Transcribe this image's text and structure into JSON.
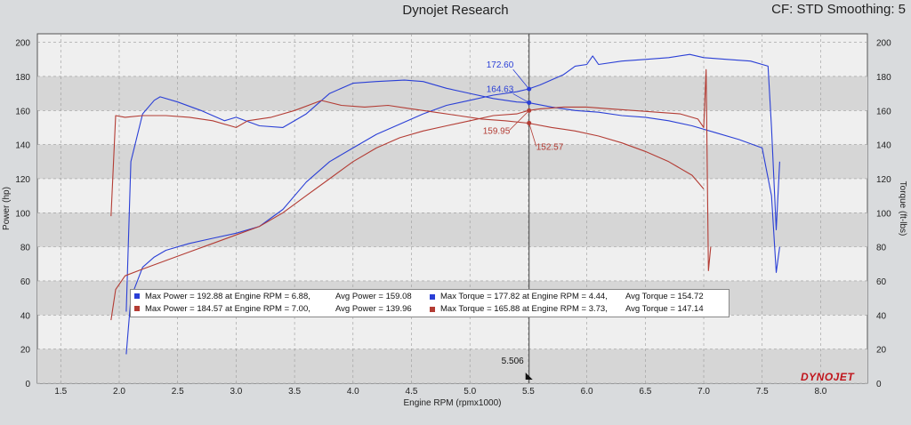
{
  "header": {
    "title": "Dynojet Research",
    "settings": "CF: STD Smoothing: 5"
  },
  "brand": "DYNOJET",
  "colors": {
    "run1": "#2a3fd6",
    "run2": "#b33c34",
    "plot_bg_light": "#efefef",
    "plot_bg_dark": "#d6d6d6",
    "grid": "#9a9a9a"
  },
  "chart_data": {
    "type": "line",
    "title": "Dynojet Research",
    "xlabel": "Engine RPM (rpmx1000)",
    "ylabel": "Power (hp)",
    "y2label": "Torque (ft-lbs)",
    "xlim": [
      1.3,
      8.4
    ],
    "ylim": [
      0,
      205
    ],
    "y2lim": [
      0,
      205
    ],
    "xticks": [
      "1.5",
      "2.0",
      "2.5",
      "3.0",
      "3.5",
      "4.0",
      "4.5",
      "5.0",
      "5.5",
      "6.0",
      "6.5",
      "7.0",
      "7.5",
      "8.0"
    ],
    "yticks": [
      "0",
      "20",
      "40",
      "60",
      "80",
      "100",
      "120",
      "140",
      "160",
      "180",
      "200"
    ],
    "grid": true,
    "cursor": {
      "x": 5.506,
      "label": "5.506"
    },
    "cursor_values": [
      {
        "label": "172.60",
        "x": 5.506,
        "y": 172.6,
        "series": "run1"
      },
      {
        "label": "164.63",
        "x": 5.506,
        "y": 164.6,
        "series": "run1"
      },
      {
        "label": "159.95",
        "x": 5.506,
        "y": 159.95,
        "series": "run2"
      },
      {
        "label": "152.57",
        "x": 5.506,
        "y": 152.6,
        "series": "run2"
      }
    ],
    "legend": [
      {
        "series": "run1",
        "max_power": "Max Power = 192.88 at Engine RPM = 6.88,",
        "avg_power": "Avg Power = 159.08",
        "max_torque": "Max Torque = 177.82 at Engine RPM = 4.44,",
        "avg_torque": "Avg Torque = 154.72"
      },
      {
        "series": "run2",
        "max_power": "Max Power = 184.57 at Engine RPM = 7.00,",
        "avg_power": "Avg Power = 139.96",
        "max_torque": "Max Torque = 165.88 at Engine RPM = 3.73,",
        "avg_torque": "Avg Torque = 147.14"
      }
    ],
    "series": [
      {
        "id": "run1_power",
        "color": "#2a3fd6",
        "x": [
          2.06,
          2.1,
          2.2,
          2.3,
          2.4,
          2.6,
          2.8,
          3.0,
          3.2,
          3.4,
          3.6,
          3.8,
          4.0,
          4.2,
          4.4,
          4.6,
          4.8,
          5.0,
          5.2,
          5.4,
          5.5,
          5.6,
          5.8,
          5.9,
          6.0,
          6.05,
          6.1,
          6.3,
          6.5,
          6.7,
          6.88,
          7.0,
          7.2,
          7.4,
          7.55,
          7.58,
          7.62,
          7.65
        ],
        "y": [
          17,
          50,
          68,
          74,
          78,
          82,
          85,
          88,
          92,
          102,
          118,
          130,
          138,
          146,
          152,
          158,
          163,
          166,
          169,
          171,
          172.6,
          175,
          181,
          186,
          187,
          192,
          187,
          189,
          190,
          191,
          192.9,
          191,
          190,
          189,
          186,
          150,
          90,
          130
        ]
      },
      {
        "id": "run1_torque",
        "color": "#2a3fd6",
        "x": [
          2.06,
          2.1,
          2.2,
          2.3,
          2.35,
          2.5,
          2.7,
          2.9,
          3.0,
          3.2,
          3.4,
          3.6,
          3.8,
          4.0,
          4.2,
          4.44,
          4.6,
          4.8,
          5.0,
          5.2,
          5.4,
          5.5,
          5.7,
          5.9,
          6.1,
          6.3,
          6.5,
          6.7,
          6.9,
          7.1,
          7.3,
          7.5,
          7.58,
          7.62,
          7.65
        ],
        "y": [
          42,
          130,
          158,
          166,
          168,
          165,
          160,
          154,
          156,
          151,
          150,
          158,
          170,
          176,
          177,
          177.8,
          177,
          173,
          170,
          167,
          165,
          164.6,
          162,
          160,
          159,
          157,
          156,
          154,
          151,
          147,
          143,
          138,
          110,
          65,
          80
        ]
      },
      {
        "id": "run2_torque",
        "color": "#b33c34",
        "x": [
          1.93,
          1.97,
          2.05,
          2.2,
          2.4,
          2.6,
          2.8,
          3.0,
          3.1,
          3.3,
          3.5,
          3.73,
          3.9,
          4.1,
          4.3,
          4.5,
          4.7,
          4.9,
          5.1,
          5.3,
          5.5,
          5.7,
          5.9,
          6.1,
          6.3,
          6.5,
          6.7,
          6.9,
          7.0
        ],
        "y": [
          98,
          157,
          156,
          157,
          157,
          156,
          154,
          150,
          154,
          156,
          160,
          165.9,
          163,
          162,
          163,
          161,
          159,
          157,
          155,
          154,
          152.6,
          150,
          148,
          145,
          141,
          136,
          130,
          122,
          114
        ]
      },
      {
        "id": "run2_power",
        "color": "#b33c34",
        "x": [
          1.93,
          1.97,
          2.05,
          2.2,
          2.4,
          2.6,
          2.8,
          3.0,
          3.2,
          3.4,
          3.6,
          3.8,
          4.0,
          4.2,
          4.4,
          4.6,
          4.8,
          5.0,
          5.2,
          5.4,
          5.5,
          5.6,
          5.8,
          6.0,
          6.2,
          6.4,
          6.6,
          6.8,
          6.95,
          7.0,
          7.02,
          7.04,
          7.06
        ],
        "y": [
          37,
          55,
          63,
          67,
          72,
          77,
          82,
          87,
          92,
          100,
          110,
          120,
          130,
          138,
          144,
          148,
          151,
          154,
          157,
          158,
          160,
          161,
          162,
          162,
          161,
          160,
          159,
          158,
          155,
          150,
          184,
          66,
          80
        ]
      }
    ]
  }
}
